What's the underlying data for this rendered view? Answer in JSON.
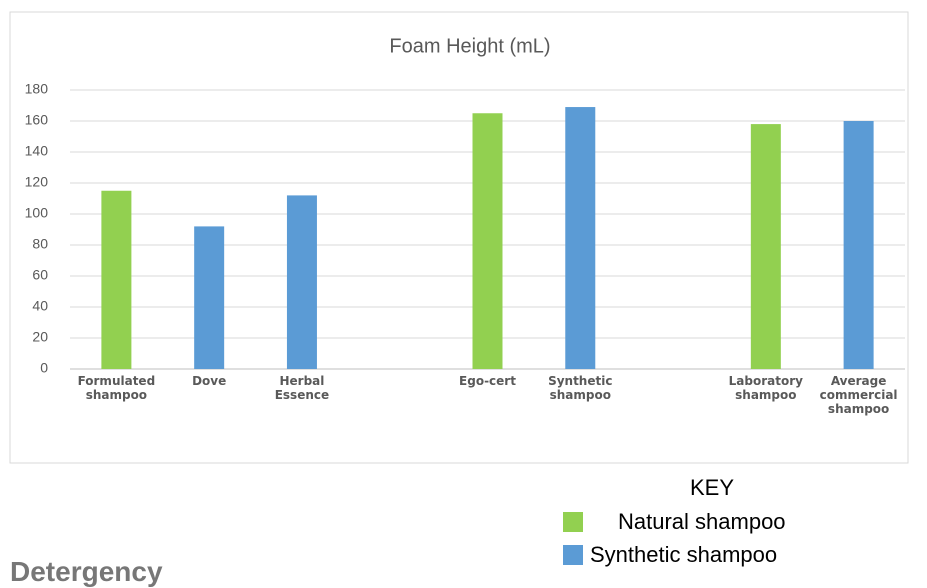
{
  "chart_data": {
    "type": "bar",
    "title": "Foam Height (mL)",
    "categories": [
      "Formulated shampoo",
      "Dove",
      "Herbal Essence",
      null,
      "Ego-cert",
      "Synthetic shampoo",
      null,
      "Laboratory shampoo",
      "Average commercial shampoo"
    ],
    "series": [
      {
        "name": "Natural shampoo",
        "color": "#92d050",
        "values": [
          115,
          null,
          null,
          null,
          165,
          null,
          null,
          158,
          null
        ]
      },
      {
        "name": "Synthetic shampoo",
        "color": "#5b9bd5",
        "values": [
          null,
          92,
          112,
          null,
          null,
          169,
          null,
          null,
          160
        ]
      }
    ],
    "ylim": [
      0,
      180
    ],
    "yticks": [
      0,
      20,
      40,
      60,
      80,
      100,
      120,
      140,
      160,
      180
    ],
    "grid": true,
    "legend_title": "KEY"
  },
  "section_heading": "Detergency"
}
